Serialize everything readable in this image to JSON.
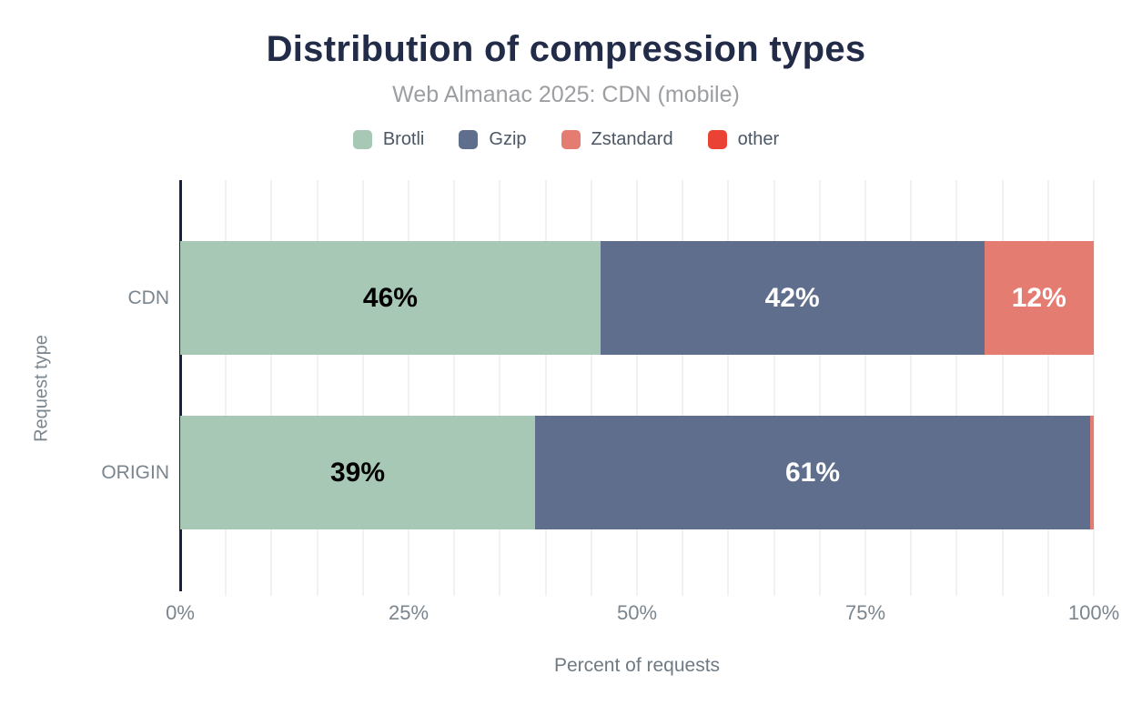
{
  "header": {
    "title": "Distribution of compression types",
    "subtitle": "Web Almanac 2025: CDN (mobile)"
  },
  "chart_data": {
    "type": "bar",
    "orientation": "horizontal-stacked",
    "title": "Distribution of compression types",
    "subtitle": "Web Almanac 2025: CDN (mobile)",
    "categories": [
      "CDN",
      "ORIGIN"
    ],
    "series": [
      {
        "name": "Brotli",
        "color": "#a6c8b5",
        "label_color": "#000000",
        "values": [
          46,
          39
        ]
      },
      {
        "name": "Gzip",
        "color": "#5e6e8c",
        "label_color": "#ffffff",
        "values": [
          42,
          61
        ]
      },
      {
        "name": "Zstandard",
        "color": "#e57c72",
        "label_color": "#ffffff",
        "values": [
          12,
          0.4
        ]
      },
      {
        "name": "other",
        "color": "#ea4335",
        "label_color": "#ffffff",
        "values": [
          0,
          0
        ]
      }
    ],
    "bar_labels": [
      [
        "46%",
        "42%",
        "12%",
        ""
      ],
      [
        "39%",
        "61%",
        "",
        ""
      ]
    ],
    "xlabel": "Percent of requests",
    "ylabel": "Request type",
    "xlim": [
      0,
      100
    ],
    "x_ticks": [
      {
        "value": 0,
        "label": "0%"
      },
      {
        "value": 25,
        "label": "25%"
      },
      {
        "value": 50,
        "label": "50%"
      },
      {
        "value": 75,
        "label": "75%"
      },
      {
        "value": 100,
        "label": "100%"
      }
    ],
    "grid": {
      "step": 5,
      "color": "#f1f1f1"
    },
    "axis_line_color": "#16233e",
    "legend_position": "top"
  }
}
